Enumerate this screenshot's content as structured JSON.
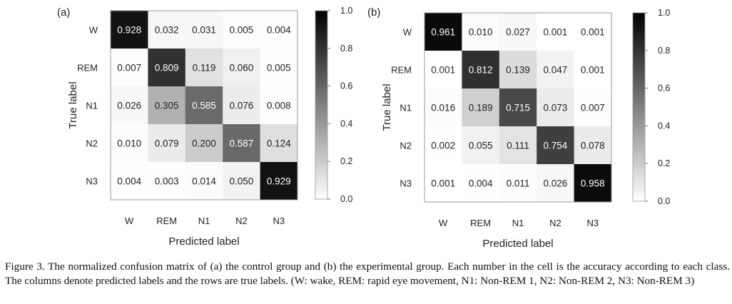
{
  "chart_data": [
    {
      "type": "heatmap",
      "panel": "(a)",
      "xlabel": "Predicted label",
      "ylabel": "True label",
      "x_categories": [
        "W",
        "REM",
        "N1",
        "N2",
        "N3"
      ],
      "y_categories": [
        "W",
        "REM",
        "N1",
        "N2",
        "N3"
      ],
      "colorbar": {
        "range": [
          0.0,
          1.0
        ],
        "ticks": [
          "1.0",
          "0.8",
          "0.6",
          "0.4",
          "0.2",
          "0.0"
        ],
        "colormap": "grayscale-white-to-black"
      },
      "values": [
        [
          "0.928",
          "0.032",
          "0.031",
          "0.005",
          "0.004"
        ],
        [
          "0.007",
          "0.809",
          "0.119",
          "0.060",
          "0.005"
        ],
        [
          "0.026",
          "0.305",
          "0.585",
          "0.076",
          "0.008"
        ],
        [
          "0.010",
          "0.079",
          "0.200",
          "0.587",
          "0.124"
        ],
        [
          "0.004",
          "0.003",
          "0.014",
          "0.050",
          "0.929"
        ]
      ]
    },
    {
      "type": "heatmap",
      "panel": "(b)",
      "xlabel": "Predicted label",
      "ylabel": "True label",
      "x_categories": [
        "W",
        "REM",
        "N1",
        "N2",
        "N3"
      ],
      "y_categories": [
        "W",
        "REM",
        "N1",
        "N2",
        "N3"
      ],
      "colorbar": {
        "range": [
          0.0,
          1.0
        ],
        "ticks": [
          "1.0",
          "0.8",
          "0.6",
          "0.4",
          "0.2",
          "0.0"
        ],
        "colormap": "grayscale-white-to-black"
      },
      "values": [
        [
          "0.961",
          "0.010",
          "0.027",
          "0.001",
          "0.001"
        ],
        [
          "0.001",
          "0.812",
          "0.139",
          "0.047",
          "0.001"
        ],
        [
          "0.016",
          "0.189",
          "0.715",
          "0.073",
          "0.007"
        ],
        [
          "0.002",
          "0.055",
          "0.111",
          "0.754",
          "0.078"
        ],
        [
          "0.001",
          "0.004",
          "0.011",
          "0.026",
          "0.958"
        ]
      ]
    }
  ],
  "caption": {
    "text": "Figure 3.  The normalized confusion matrix of (a) the control group and (b) the experimental group. Each number in the cell is the accuracy according to each class. The columns denote predicted labels and the rows are true labels. (W: wake, REM: rapid eye movement, N1: Non-REM 1, N2: Non-REM 2, N3: Non-REM 3)"
  }
}
